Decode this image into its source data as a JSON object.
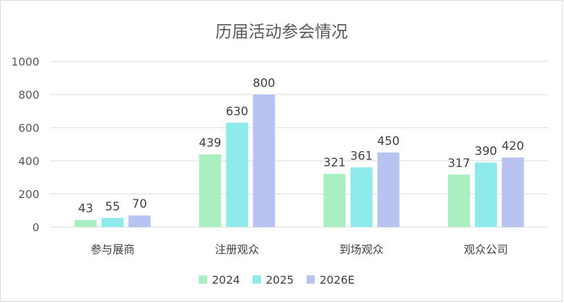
{
  "chart_data": {
    "type": "bar",
    "title": "历届活动参会情况",
    "categories": [
      "参与展商",
      "注册观众",
      "到场观众",
      "观众公司"
    ],
    "series": [
      {
        "name": "2024",
        "values": [
          43,
          439,
          321,
          317
        ],
        "color": "#a9efc2"
      },
      {
        "name": "2025",
        "values": [
          55,
          630,
          361,
          390
        ],
        "color": "#8feaec"
      },
      {
        "name": "2026E",
        "values": [
          70,
          800,
          450,
          420
        ],
        "color": "#b9c3f1"
      }
    ],
    "ylim": [
      0,
      1000
    ],
    "yticks": [
      "0",
      "200",
      "400",
      "600",
      "800",
      "1000"
    ],
    "grid": true,
    "legend_position": "bottom"
  }
}
